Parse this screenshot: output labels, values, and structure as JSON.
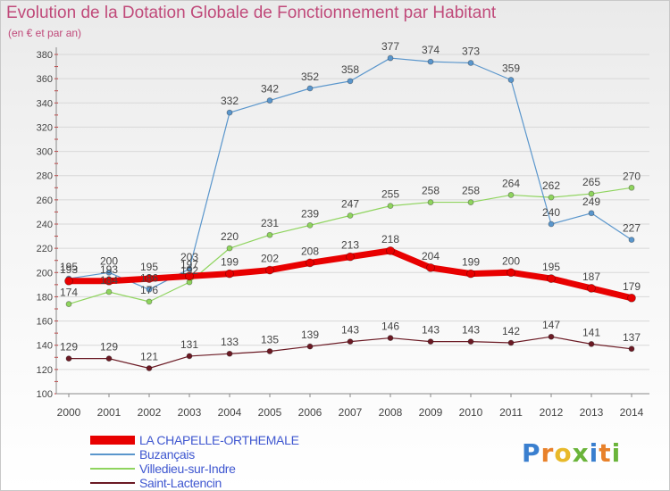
{
  "title": "Evolution de la Dotation Globale de Fonctionnement par Habitant",
  "subtitle": "(en € et par an)",
  "logo": {
    "text": "Proxiti",
    "letter_colors": [
      "#3a7fcf",
      "#e8812a",
      "#e8b92a",
      "#6ab43a",
      "#3a7fcf",
      "#e8812a",
      "#6ab43a"
    ]
  },
  "colors": {
    "title": "#c04a7a",
    "legend_text": "#3f57d0",
    "axis": "#888888",
    "label": "#444444",
    "grid": "#d8d8d8"
  },
  "chart_data": {
    "type": "line",
    "title": "Evolution de la Dotation Globale de Fonctionnement par Habitant",
    "subtitle": "(en € et par an)",
    "xlabel": "",
    "ylabel": "",
    "x": [
      "2000",
      "2001",
      "2002",
      "2003",
      "2004",
      "2005",
      "2006",
      "2007",
      "2008",
      "2009",
      "2010",
      "2011",
      "2012",
      "2013",
      "2014"
    ],
    "ylim": [
      100,
      380
    ],
    "yticks": [
      100,
      120,
      140,
      160,
      180,
      200,
      220,
      240,
      260,
      280,
      300,
      320,
      340,
      360,
      380
    ],
    "grid": "horizontal",
    "legend_position": "bottom-left",
    "series": [
      {
        "name": "Saint-Lactencin",
        "color": "#6b1a24",
        "width": 1.2,
        "marker": 5,
        "values": [
          129,
          129,
          121,
          131,
          133,
          135,
          139,
          143,
          146,
          143,
          143,
          142,
          147,
          141,
          137
        ]
      },
      {
        "name": "Villedieu-sur-Indre",
        "color": "#8fd45e",
        "width": 1.2,
        "marker": 5,
        "values": [
          174,
          184,
          176,
          192,
          220,
          231,
          239,
          247,
          255,
          258,
          258,
          264,
          262,
          265,
          270
        ]
      },
      {
        "name": "Buzançais",
        "color": "#5a96cc",
        "width": 1.2,
        "marker": 5,
        "values": [
          195,
          200,
          186,
          203,
          332,
          342,
          352,
          358,
          377,
          374,
          373,
          359,
          240,
          249,
          227
        ]
      },
      {
        "name": "LA CHAPELLE-ORTHEMALE",
        "color": "#e80000",
        "width": 7,
        "marker": 8,
        "values": [
          193,
          193,
          195,
          197,
          199,
          202,
          208,
          213,
          218,
          204,
          199,
          200,
          195,
          187,
          179
        ]
      }
    ],
    "legend_order": [
      "LA CHAPELLE-ORTHEMALE",
      "Buzançais",
      "Villedieu-sur-Indre",
      "Saint-Lactencin"
    ]
  }
}
